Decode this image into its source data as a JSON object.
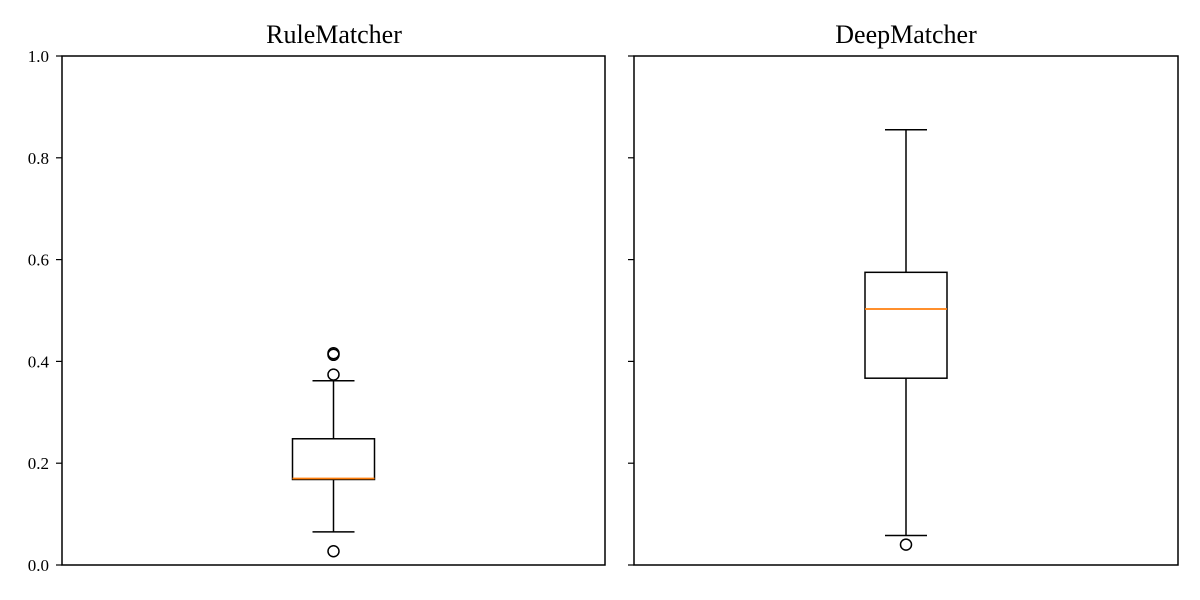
{
  "chart_data": {
    "type": "boxplot",
    "ylim": [
      0,
      1
    ],
    "yticks": [
      "0.0",
      "0.2",
      "0.4",
      "0.6",
      "0.8",
      "1.0"
    ],
    "sharey": true,
    "grid": false,
    "median_color": "#ff7f0e",
    "box_color": "#000000",
    "panels": [
      {
        "title": "RuleMatcher",
        "box": {
          "whisker_low": 0.065,
          "q1": 0.168,
          "median": 0.17,
          "q3": 0.248,
          "whisker_high": 0.362
        },
        "outliers": [
          0.027,
          0.374,
          0.413,
          0.416
        ]
      },
      {
        "title": "DeepMatcher",
        "box": {
          "whisker_low": 0.058,
          "q1": 0.367,
          "median": 0.503,
          "q3": 0.575,
          "whisker_high": 0.855
        },
        "outliers": [
          0.04
        ]
      }
    ]
  }
}
